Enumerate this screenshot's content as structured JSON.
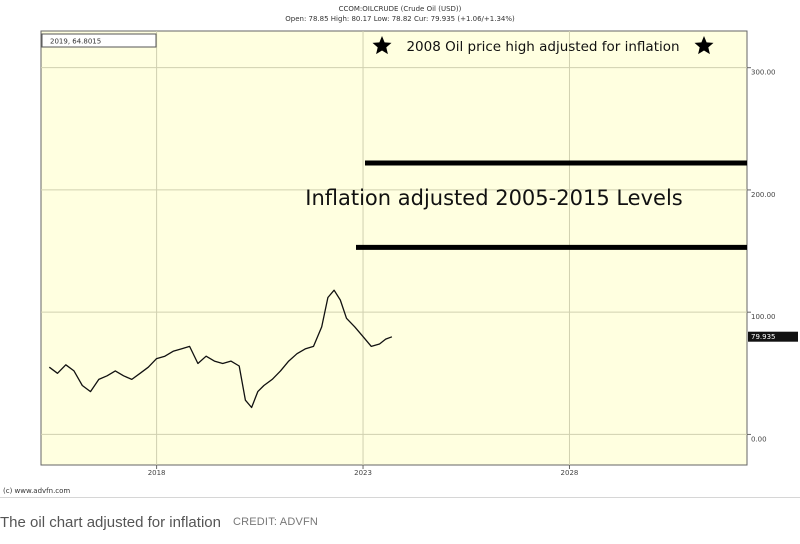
{
  "header": {
    "symbol": "CCOM:OILCRUDE (Crude Oil (USD))",
    "quote": "Open: 78.85 High: 80.17 Low: 78.82 Cur: 79.935 (+1.06/+1.34%)"
  },
  "cursor_readout": "2019, 64.8015",
  "copyright": "(c) www.advfn.com",
  "caption": {
    "text": "The oil chart adjusted for inflation",
    "credit": "CREDIT: ADVFN"
  },
  "chart_data": {
    "type": "line",
    "series": [
      {
        "values_note_free": true,
        "x": [
          2015.4,
          2015.6,
          2015.8,
          2016.0,
          2016.2,
          2016.4,
          2016.6,
          2016.8,
          2017.0,
          2017.2,
          2017.4,
          2017.6,
          2017.8,
          2018.0,
          2018.2,
          2018.4,
          2018.6,
          2018.8,
          2019.0,
          2019.2,
          2019.4,
          2019.6,
          2019.8,
          2020.0,
          2020.15,
          2020.3,
          2020.45,
          2020.6,
          2020.8,
          2021.0,
          2021.2,
          2021.4,
          2021.6,
          2021.8,
          2022.0,
          2022.15,
          2022.3,
          2022.45,
          2022.6,
          2022.8,
          2023.0,
          2023.2,
          2023.4,
          2023.55,
          2023.7
        ],
        "y": [
          55,
          50,
          57,
          52,
          40,
          35,
          45,
          48,
          52,
          48,
          45,
          50,
          55,
          62,
          64,
          68,
          70,
          72,
          58,
          64,
          60,
          58,
          60,
          56,
          28,
          22,
          35,
          40,
          45,
          52,
          60,
          66,
          70,
          72,
          88,
          112,
          118,
          110,
          95,
          88,
          80,
          72,
          74,
          78,
          79.9
        ]
      }
    ],
    "x_ticks": [
      "2018",
      "2023",
      "2028"
    ],
    "y_ticks": [
      "300.00",
      "200.00",
      "100.00",
      "0.00"
    ],
    "x_range": [
      2015.2,
      2032.3
    ],
    "y_range": [
      -25,
      330
    ],
    "current_value": "79.935",
    "grid": true,
    "annotations": {
      "top_label": "2008 Oil price high adjusted for inflation",
      "band_label": "Inflation adjusted 2005-2015 Levels",
      "band_upper": 222,
      "band_lower": 153
    },
    "colors": {
      "plot_bg": "#ffffe0",
      "line": "#111111",
      "grid": "#d0d0b0"
    }
  }
}
